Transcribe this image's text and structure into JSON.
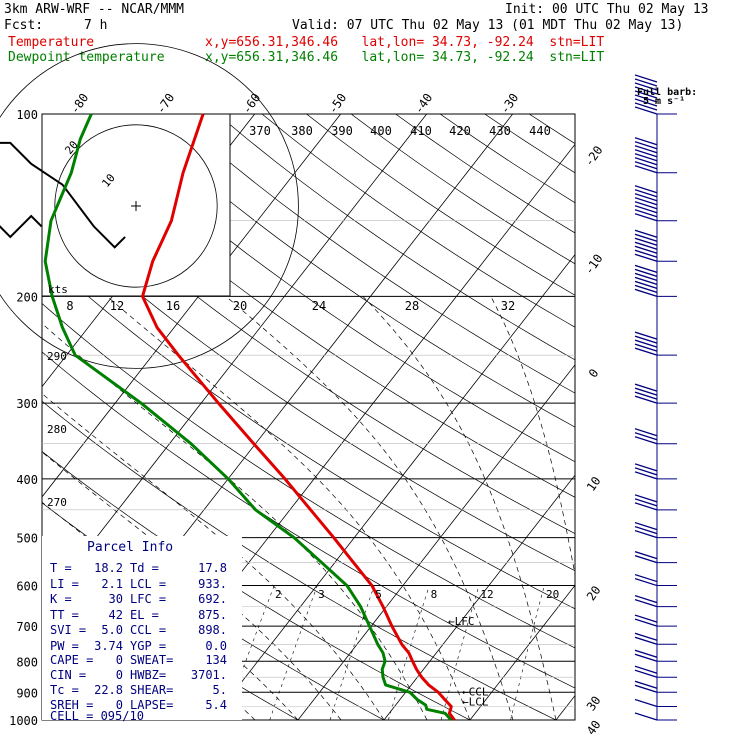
{
  "header": {
    "model": "3km ARW-WRF -- NCAR/MMM",
    "init": "Init: 00 UTC Thu 02 May 13",
    "fcst_label": "Fcst:",
    "fcst_value": "7 h",
    "valid": "Valid: 07 UTC Thu 02 May 13 (01 MDT Thu 02 May 13)",
    "temp_label": "Temperature",
    "temp_info": "x,y=656.31,346.46   lat,lon= 34.73, -92.24  stn=LIT",
    "dew_label": "Dewpoint temperature",
    "dew_info": "x,y=656.31,346.46   lat,lon= 34.73, -92.24  stn=LIT",
    "barb_legend_line1": "Full barb:",
    "barb_legend_line2": "5 m s⁻¹"
  },
  "colors": {
    "temperature": "#e00000",
    "dewpoint": "#008000",
    "wind_barbs": "#000080",
    "parcel_text": "#000080"
  },
  "hodograph": {
    "units_label": "kts",
    "ring_labels": [
      "10",
      "20"
    ],
    "speed_ticks": [
      "8",
      "12",
      "16",
      "20",
      "24",
      "28",
      "32"
    ],
    "theta_labels": [
      "370",
      "380",
      "390",
      "400",
      "410",
      "420",
      "430",
      "440"
    ],
    "side_labels": [
      "290",
      "280",
      "270"
    ]
  },
  "mixing_ratio_labels": [
    "2",
    "3",
    "5",
    "8",
    "12",
    "20"
  ],
  "level_labels": [
    "LFC",
    "CCL",
    "LCL"
  ],
  "parcel_info": {
    "title": "Parcel Info",
    "rows": [
      [
        "T  =",
        "18.2",
        "Td =",
        "17.8"
      ],
      [
        "LI =",
        "2.1",
        "LCL =",
        "933."
      ],
      [
        "K  =",
        "30",
        "LFC =",
        "692."
      ],
      [
        "TT =",
        "42",
        "EL  =",
        "875."
      ],
      [
        "SVI =",
        "5.0",
        "CCL =",
        "898."
      ],
      [
        "PW =",
        "3.74",
        "YGP =",
        "0.0"
      ],
      [
        "CAPE =",
        "0",
        "SWEAT=",
        "134"
      ],
      [
        "CIN  =",
        "0",
        "HWBZ=",
        "3701."
      ],
      [
        "Tc  =",
        "22.8",
        "SHEAR=",
        "5."
      ],
      [
        "SREH =",
        "0",
        "LAPSE=",
        "5.4"
      ]
    ],
    "cell": "CELL = 095/10"
  },
  "chart_data": {
    "type": "line",
    "title": "",
    "ylabel": "",
    "xlabel": "",
    "pressure_levels": [
      100,
      200,
      300,
      400,
      500,
      600,
      700,
      800,
      900,
      1000
    ],
    "temperature_tick_labels": [
      -80,
      -70,
      -60,
      -50,
      -40,
      -30,
      -20,
      -10,
      0,
      10,
      20,
      30,
      40
    ],
    "x_unit_note": "skew-T temperature axis (°C), log-p vertical axis (hPa)",
    "series": [
      {
        "name": "Temperature",
        "color": "#e00000",
        "points": [
          [
            1000,
            18.2
          ],
          [
            975,
            17.0
          ],
          [
            950,
            16.6
          ],
          [
            925,
            15.2
          ],
          [
            900,
            13.8
          ],
          [
            875,
            12.0
          ],
          [
            850,
            10.5
          ],
          [
            825,
            9.2
          ],
          [
            800,
            8.0
          ],
          [
            775,
            6.8
          ],
          [
            750,
            5.2
          ],
          [
            700,
            2.4
          ],
          [
            650,
            -0.4
          ],
          [
            600,
            -3.6
          ],
          [
            550,
            -7.8
          ],
          [
            500,
            -12.4
          ],
          [
            450,
            -17.6
          ],
          [
            400,
            -23.4
          ],
          [
            350,
            -30.2
          ],
          [
            300,
            -38.0
          ],
          [
            250,
            -47.0
          ],
          [
            225,
            -52.0
          ],
          [
            200,
            -56.5
          ],
          [
            175,
            -58.5
          ],
          [
            150,
            -60.0
          ],
          [
            125,
            -63.0
          ],
          [
            100,
            -66.0
          ]
        ]
      },
      {
        "name": "Dewpoint temperature",
        "color": "#008000",
        "points": [
          [
            1000,
            17.8
          ],
          [
            975,
            16.5
          ],
          [
            960,
            14.0
          ],
          [
            945,
            13.5
          ],
          [
            925,
            12.0
          ],
          [
            900,
            10.5
          ],
          [
            875,
            7.0
          ],
          [
            850,
            6.0
          ],
          [
            825,
            5.2
          ],
          [
            800,
            4.8
          ],
          [
            775,
            3.8
          ],
          [
            750,
            2.4
          ],
          [
            700,
            -0.2
          ],
          [
            650,
            -3.0
          ],
          [
            600,
            -6.5
          ],
          [
            550,
            -11.5
          ],
          [
            500,
            -17.0
          ],
          [
            450,
            -24.0
          ],
          [
            400,
            -30.0
          ],
          [
            350,
            -37.5
          ],
          [
            300,
            -47.0
          ],
          [
            250,
            -59.0
          ],
          [
            225,
            -63.0
          ],
          [
            200,
            -67.0
          ],
          [
            175,
            -71.0
          ],
          [
            150,
            -74.0
          ],
          [
            125,
            -76.0
          ],
          [
            110,
            -78.0
          ],
          [
            100,
            -79.0
          ]
        ]
      }
    ],
    "hodograph_uv_kts": [
      [
        -4,
        -4
      ],
      [
        -6,
        -6
      ],
      [
        -10,
        -2
      ],
      [
        -16,
        6
      ],
      [
        -22,
        10
      ],
      [
        -26,
        14
      ],
      [
        -30,
        14
      ],
      [
        -33,
        6
      ],
      [
        -32,
        4
      ],
      [
        -30,
        0
      ],
      [
        -26,
        -4
      ],
      [
        -22,
        0
      ],
      [
        -20,
        -2
      ]
    ],
    "wind_barbs": [
      {
        "p": 100,
        "speed_ms": 45
      },
      {
        "p": 125,
        "speed_ms": 40
      },
      {
        "p": 150,
        "speed_ms": 40
      },
      {
        "p": 175,
        "speed_ms": 35
      },
      {
        "p": 200,
        "speed_ms": 35
      },
      {
        "p": 250,
        "speed_ms": 25
      },
      {
        "p": 300,
        "speed_ms": 20
      },
      {
        "p": 350,
        "speed_ms": 15
      },
      {
        "p": 400,
        "speed_ms": 15
      },
      {
        "p": 450,
        "speed_ms": 15
      },
      {
        "p": 500,
        "speed_ms": 15
      },
      {
        "p": 550,
        "speed_ms": 10
      },
      {
        "p": 600,
        "speed_ms": 10
      },
      {
        "p": 650,
        "speed_ms": 10
      },
      {
        "p": 700,
        "speed_ms": 10
      },
      {
        "p": 750,
        "speed_ms": 10
      },
      {
        "p": 800,
        "speed_ms": 10
      },
      {
        "p": 850,
        "speed_ms": 10
      },
      {
        "p": 900,
        "speed_ms": 10
      },
      {
        "p": 950,
        "speed_ms": 5
      },
      {
        "p": 1000,
        "speed_ms": 5
      }
    ]
  }
}
